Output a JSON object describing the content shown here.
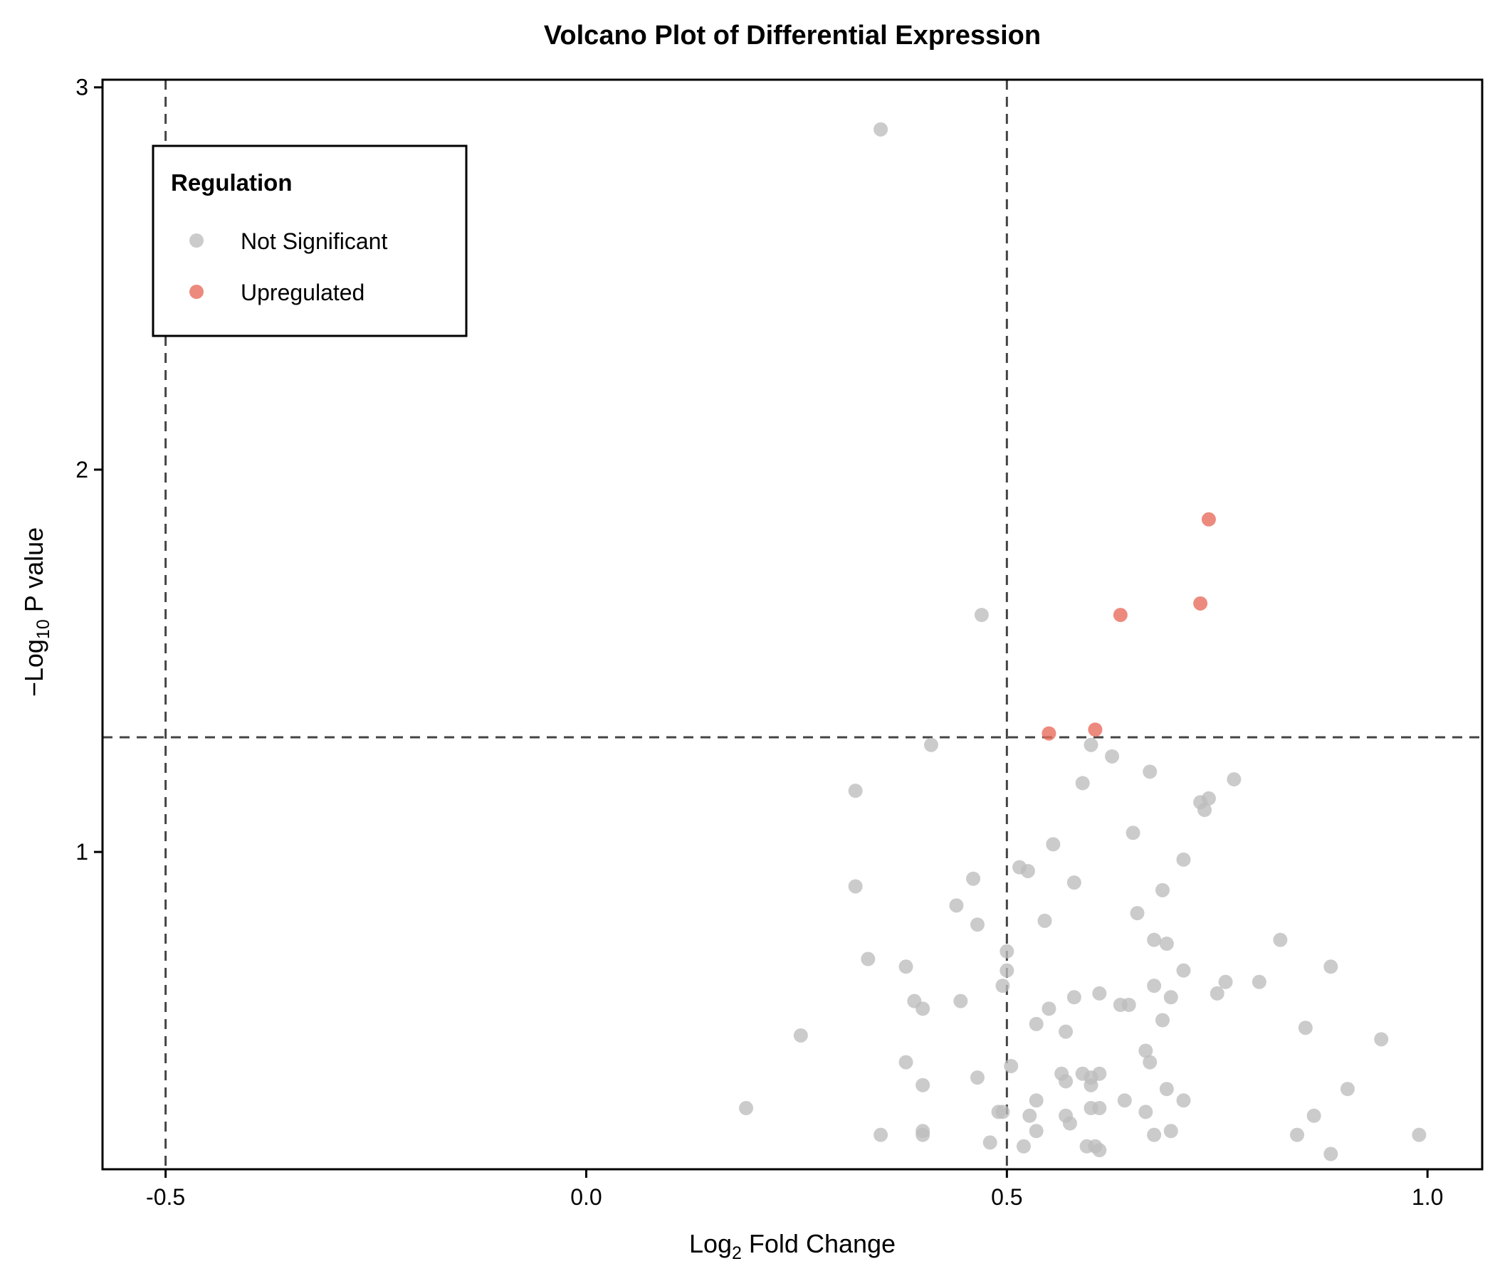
{
  "chart_data": {
    "type": "scatter",
    "title": "Volcano Plot of Differential Expression",
    "xlabel": {
      "prefix": "Log",
      "sub": "2",
      "suffix": " Fold Change"
    },
    "ylabel": {
      "prefix": "−Log",
      "sub": "10",
      "suffix": " P value"
    },
    "xlim": [
      -0.575,
      1.065
    ],
    "ylim": [
      0.17,
      3.02
    ],
    "x_ticks": [
      -0.5,
      0.0,
      0.5,
      1.0
    ],
    "x_tick_labels": [
      "-0.5",
      "0.0",
      "0.5",
      "1.0"
    ],
    "y_ticks": [
      1,
      2,
      3
    ],
    "y_tick_labels": [
      "1",
      "2",
      "3"
    ],
    "thresholds": {
      "x": [
        -0.5,
        0.5
      ],
      "y": 1.3
    },
    "grid": false,
    "legend": {
      "title": "Regulation",
      "position": "top-left",
      "entries": [
        {
          "name": "Not Significant",
          "color": "#bdbdbd"
        },
        {
          "name": "Upregulated",
          "color": "#e8695a"
        }
      ]
    },
    "series": [
      {
        "name": "Not Significant",
        "color": "#bdbdbd",
        "points": [
          [
            0.35,
            2.89
          ],
          [
            0.47,
            1.62
          ],
          [
            0.41,
            1.28
          ],
          [
            0.6,
            1.28
          ],
          [
            0.625,
            1.25
          ],
          [
            0.67,
            1.21
          ],
          [
            0.77,
            1.19
          ],
          [
            0.59,
            1.18
          ],
          [
            0.32,
            1.16
          ],
          [
            0.74,
            1.14
          ],
          [
            0.73,
            1.13
          ],
          [
            0.735,
            1.11
          ],
          [
            0.65,
            1.05
          ],
          [
            0.555,
            1.02
          ],
          [
            0.71,
            0.98
          ],
          [
            0.515,
            0.96
          ],
          [
            0.525,
            0.95
          ],
          [
            0.46,
            0.93
          ],
          [
            0.58,
            0.92
          ],
          [
            0.32,
            0.91
          ],
          [
            0.685,
            0.9
          ],
          [
            0.44,
            0.86
          ],
          [
            0.655,
            0.84
          ],
          [
            0.545,
            0.82
          ],
          [
            0.465,
            0.81
          ],
          [
            0.675,
            0.77
          ],
          [
            0.69,
            0.76
          ],
          [
            0.825,
            0.77
          ],
          [
            0.5,
            0.74
          ],
          [
            0.335,
            0.72
          ],
          [
            0.38,
            0.7
          ],
          [
            0.885,
            0.7
          ],
          [
            0.5,
            0.69
          ],
          [
            0.71,
            0.69
          ],
          [
            0.495,
            0.65
          ],
          [
            0.675,
            0.65
          ],
          [
            0.8,
            0.66
          ],
          [
            0.76,
            0.66
          ],
          [
            0.75,
            0.63
          ],
          [
            0.61,
            0.63
          ],
          [
            0.58,
            0.62
          ],
          [
            0.695,
            0.62
          ],
          [
            0.39,
            0.61
          ],
          [
            0.445,
            0.61
          ],
          [
            0.4,
            0.59
          ],
          [
            0.55,
            0.59
          ],
          [
            0.635,
            0.6
          ],
          [
            0.645,
            0.6
          ],
          [
            0.685,
            0.56
          ],
          [
            0.535,
            0.55
          ],
          [
            0.57,
            0.53
          ],
          [
            0.855,
            0.54
          ],
          [
            0.255,
            0.52
          ],
          [
            0.945,
            0.51
          ],
          [
            0.665,
            0.48
          ],
          [
            0.38,
            0.45
          ],
          [
            0.67,
            0.45
          ],
          [
            0.505,
            0.44
          ],
          [
            0.565,
            0.42
          ],
          [
            0.59,
            0.42
          ],
          [
            0.61,
            0.42
          ],
          [
            0.465,
            0.41
          ],
          [
            0.57,
            0.4
          ],
          [
            0.6,
            0.41
          ],
          [
            0.6,
            0.39
          ],
          [
            0.4,
            0.39
          ],
          [
            0.69,
            0.38
          ],
          [
            0.905,
            0.38
          ],
          [
            0.535,
            0.35
          ],
          [
            0.64,
            0.35
          ],
          [
            0.71,
            0.35
          ],
          [
            0.19,
            0.33
          ],
          [
            0.49,
            0.32
          ],
          [
            0.495,
            0.32
          ],
          [
            0.527,
            0.31
          ],
          [
            0.6,
            0.33
          ],
          [
            0.61,
            0.33
          ],
          [
            0.665,
            0.32
          ],
          [
            0.57,
            0.31
          ],
          [
            0.865,
            0.31
          ],
          [
            0.575,
            0.29
          ],
          [
            0.35,
            0.26
          ],
          [
            0.4,
            0.27
          ],
          [
            0.4,
            0.26
          ],
          [
            0.535,
            0.27
          ],
          [
            0.675,
            0.26
          ],
          [
            0.695,
            0.27
          ],
          [
            0.845,
            0.26
          ],
          [
            0.99,
            0.26
          ],
          [
            0.48,
            0.24
          ],
          [
            0.52,
            0.23
          ],
          [
            0.595,
            0.23
          ],
          [
            0.605,
            0.23
          ],
          [
            0.61,
            0.22
          ],
          [
            0.885,
            0.21
          ]
        ]
      },
      {
        "name": "Upregulated",
        "color": "#e8695a",
        "points": [
          [
            0.74,
            1.87
          ],
          [
            0.73,
            1.65
          ],
          [
            0.635,
            1.62
          ],
          [
            0.605,
            1.32
          ],
          [
            0.55,
            1.31
          ]
        ]
      }
    ]
  }
}
